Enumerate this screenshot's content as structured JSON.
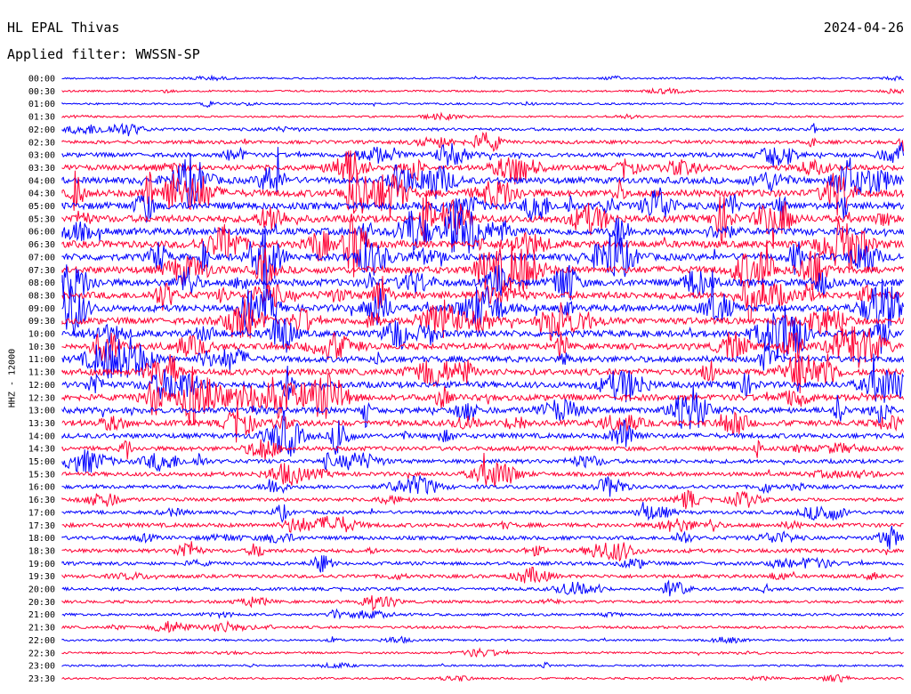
{
  "header": {
    "station": "HL EPAL Thivas",
    "date": "2024-04-26",
    "filter": "Applied filter: WWSSN-SP"
  },
  "chart_data": {
    "type": "line",
    "ylabel": "HHZ - 12000",
    "colors": [
      "#0000ff",
      "#ff0033"
    ],
    "rows": [
      "00:00",
      "00:30",
      "01:00",
      "01:30",
      "02:00",
      "02:30",
      "03:00",
      "03:30",
      "04:00",
      "04:30",
      "05:00",
      "05:30",
      "06:00",
      "06:30",
      "07:00",
      "07:30",
      "08:00",
      "08:30",
      "09:00",
      "09:30",
      "10:00",
      "10:30",
      "11:00",
      "11:30",
      "12:00",
      "12:30",
      "13:00",
      "13:30",
      "14:00",
      "14:30",
      "15:00",
      "15:30",
      "16:00",
      "16:30",
      "17:00",
      "17:30",
      "18:00",
      "18:30",
      "19:00",
      "19:30",
      "20:00",
      "20:30",
      "21:00",
      "21:30",
      "22:00",
      "22:30",
      "23:00",
      "23:30"
    ],
    "activity": [
      0.1,
      0.12,
      0.14,
      0.12,
      0.3,
      0.4,
      0.55,
      0.7,
      0.9,
      1.0,
      1.0,
      1.0,
      1.0,
      1.0,
      1.0,
      1.0,
      1.0,
      1.0,
      0.95,
      0.9,
      0.9,
      0.85,
      0.85,
      0.85,
      0.85,
      0.85,
      0.8,
      0.8,
      0.65,
      0.55,
      0.5,
      0.5,
      0.45,
      0.4,
      0.4,
      0.5,
      0.45,
      0.45,
      0.4,
      0.4,
      0.35,
      0.3,
      0.25,
      0.25,
      0.15,
      0.15,
      0.12,
      0.15
    ]
  }
}
